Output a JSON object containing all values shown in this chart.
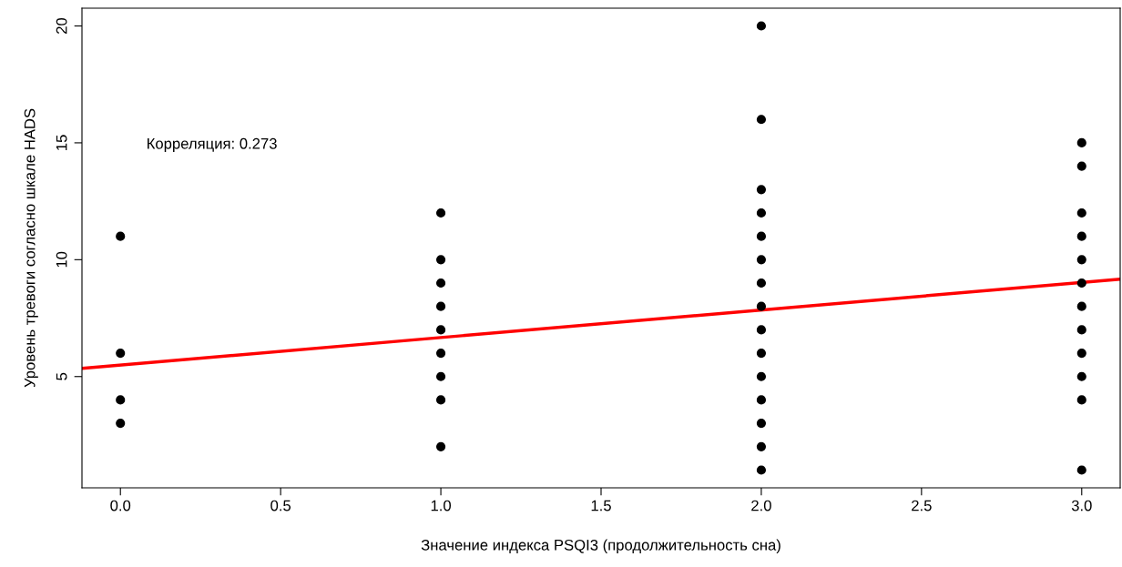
{
  "chart_data": {
    "type": "scatter",
    "xlabel": "Значение индекса PSQI3 (продолжительность сна)",
    "ylabel": "Уровень тревоги согласно шкале HADS",
    "annotations": [
      "Корреляция: 0.273"
    ],
    "series": [
      {
        "color": "#000000",
        "marker": "circle",
        "x": [
          0,
          0,
          0,
          0,
          1,
          1,
          1,
          1,
          1,
          1,
          1,
          1,
          1,
          2,
          2,
          2,
          2,
          2,
          2,
          2,
          2,
          2,
          2,
          2,
          2,
          2,
          2,
          2,
          3,
          3,
          3,
          3,
          3,
          3,
          3,
          3,
          3,
          3,
          3,
          3
        ],
        "values": [
          11,
          6,
          4,
          3,
          12,
          10,
          9,
          8,
          7,
          6,
          5,
          4,
          2,
          20,
          16,
          13,
          12,
          11,
          10,
          9,
          8,
          7,
          6,
          5,
          4,
          3,
          2,
          1,
          15,
          14,
          12,
          11,
          10,
          9,
          8,
          7,
          6,
          5,
          4,
          1
        ]
      },
      {
        "type": "line",
        "color": "#ff0000",
        "marker": "none",
        "line_style": "solid",
        "x": [
          -0.12,
          3.12
        ],
        "values": [
          5.35,
          9.17
        ]
      }
    ],
    "xlim": [
      -0.12,
      3.12
    ],
    "xticks": [
      {
        "value": 0,
        "label": "0.0"
      },
      {
        "value": 0.5,
        "label": "0.5"
      },
      {
        "value": 1,
        "label": "1.0"
      },
      {
        "value": 1.5,
        "label": "1.5"
      },
      {
        "value": 2,
        "label": "2.0"
      },
      {
        "value": 2.5,
        "label": "2.5"
      },
      {
        "value": 3,
        "label": "3.0"
      }
    ],
    "ylim": [
      0.24,
      20.76
    ],
    "yticks": [
      5,
      10,
      15,
      20
    ],
    "grid": false,
    "legend": false
  }
}
